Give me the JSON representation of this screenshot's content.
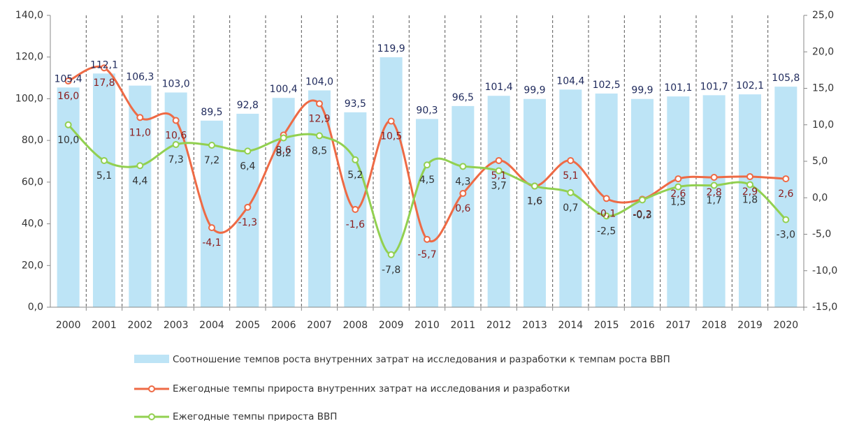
{
  "chart_data": {
    "type": "combo",
    "categories": [
      "2000",
      "2001",
      "2002",
      "2003",
      "2004",
      "2005",
      "2006",
      "2007",
      "2008",
      "2009",
      "2010",
      "2011",
      "2012",
      "2013",
      "2014",
      "2015",
      "2016",
      "2017",
      "2018",
      "2019",
      "2020"
    ],
    "series": [
      {
        "name": "Соотношение темпов роста внутренних затрат на исследования и разработки к темпам роста ВВП",
        "type": "bar",
        "axis": "y",
        "color": "#bde4f6",
        "label_color": "#1f2a5c",
        "values": [
          105.4,
          112.1,
          106.3,
          103.0,
          89.5,
          92.8,
          100.4,
          104.0,
          93.5,
          119.9,
          90.3,
          96.5,
          101.4,
          99.9,
          104.4,
          102.5,
          99.9,
          101.1,
          101.7,
          102.1,
          105.8
        ],
        "value_labels": [
          "105,4",
          "112,1",
          "106,3",
          "103,0",
          "89,5",
          "92,8",
          "100,4",
          "104,0",
          "93,5",
          "119,9",
          "90,3",
          "96,5",
          "101,4",
          "99,9",
          "104,4",
          "102,5",
          "99,9",
          "101,1",
          "101,7",
          "102,1",
          "105,8"
        ]
      },
      {
        "name": "Ежегодные темпы прироста внутренних затрат на исследования и разработки",
        "type": "line",
        "axis": "y2",
        "color": "#ee6a45",
        "label_color": "#8b1d1d",
        "values": [
          16.0,
          17.8,
          11.0,
          10.6,
          -4.1,
          -1.3,
          8.6,
          12.9,
          -1.6,
          10.5,
          -5.7,
          0.6,
          5.1,
          1.6,
          5.1,
          -0.1,
          -0.2,
          2.6,
          2.8,
          2.9,
          2.6
        ],
        "value_labels": [
          "16,0",
          "17,8",
          "11,0",
          "10,6",
          "-4,1",
          "-1,3",
          "8,6",
          "12,9",
          "-1,6",
          "10,5",
          "-5,7",
          "0,6",
          "5,1",
          "1,6",
          "5,1",
          "-0,1",
          "-0,2",
          "2,6",
          "2,8",
          "2,9",
          "2,6"
        ]
      },
      {
        "name": "Ежегодные темпы прироста ВВП",
        "type": "line",
        "axis": "y2",
        "color": "#92d050",
        "label_color": "#333333",
        "values": [
          10.0,
          5.1,
          4.4,
          7.3,
          7.2,
          6.4,
          8.2,
          8.5,
          5.2,
          -7.8,
          4.5,
          4.3,
          3.7,
          1.6,
          0.7,
          -2.5,
          -0.3,
          1.5,
          1.7,
          1.8,
          -3.0
        ],
        "value_labels": [
          "10,0",
          "5,1",
          "4,4",
          "7,3",
          "7,2",
          "6,4",
          "8,2",
          "8,5",
          "5,2",
          "-7,8",
          "4,5",
          "4,3",
          "3,7",
          "1,6",
          "0,7",
          "-2,5",
          "-0,3",
          "1,5",
          "1,7",
          "1,8",
          "-3,0"
        ]
      }
    ],
    "ylim": [
      0,
      140
    ],
    "yticks": [
      {
        "value": 0,
        "label": "0,0"
      },
      {
        "value": 20,
        "label": "20,0"
      },
      {
        "value": 40,
        "label": "40,0"
      },
      {
        "value": 60,
        "label": "60,0"
      },
      {
        "value": 80,
        "label": "80,0"
      },
      {
        "value": 100,
        "label": "100,0"
      },
      {
        "value": 120,
        "label": "120,0"
      },
      {
        "value": 140,
        "label": "140,0"
      }
    ],
    "y2lim": [
      -15,
      25
    ],
    "y2ticks": [
      {
        "value": -15,
        "label": "-15,0"
      },
      {
        "value": -10,
        "label": "-10,0"
      },
      {
        "value": -5,
        "label": "-5,0"
      },
      {
        "value": 0,
        "label": "0,0"
      },
      {
        "value": 5,
        "label": "5,0"
      },
      {
        "value": 10,
        "label": "10,0"
      },
      {
        "value": 15,
        "label": "15,0"
      },
      {
        "value": 20,
        "label": "20,0"
      },
      {
        "value": 25,
        "label": "25,0"
      }
    ],
    "category_separators": true
  }
}
